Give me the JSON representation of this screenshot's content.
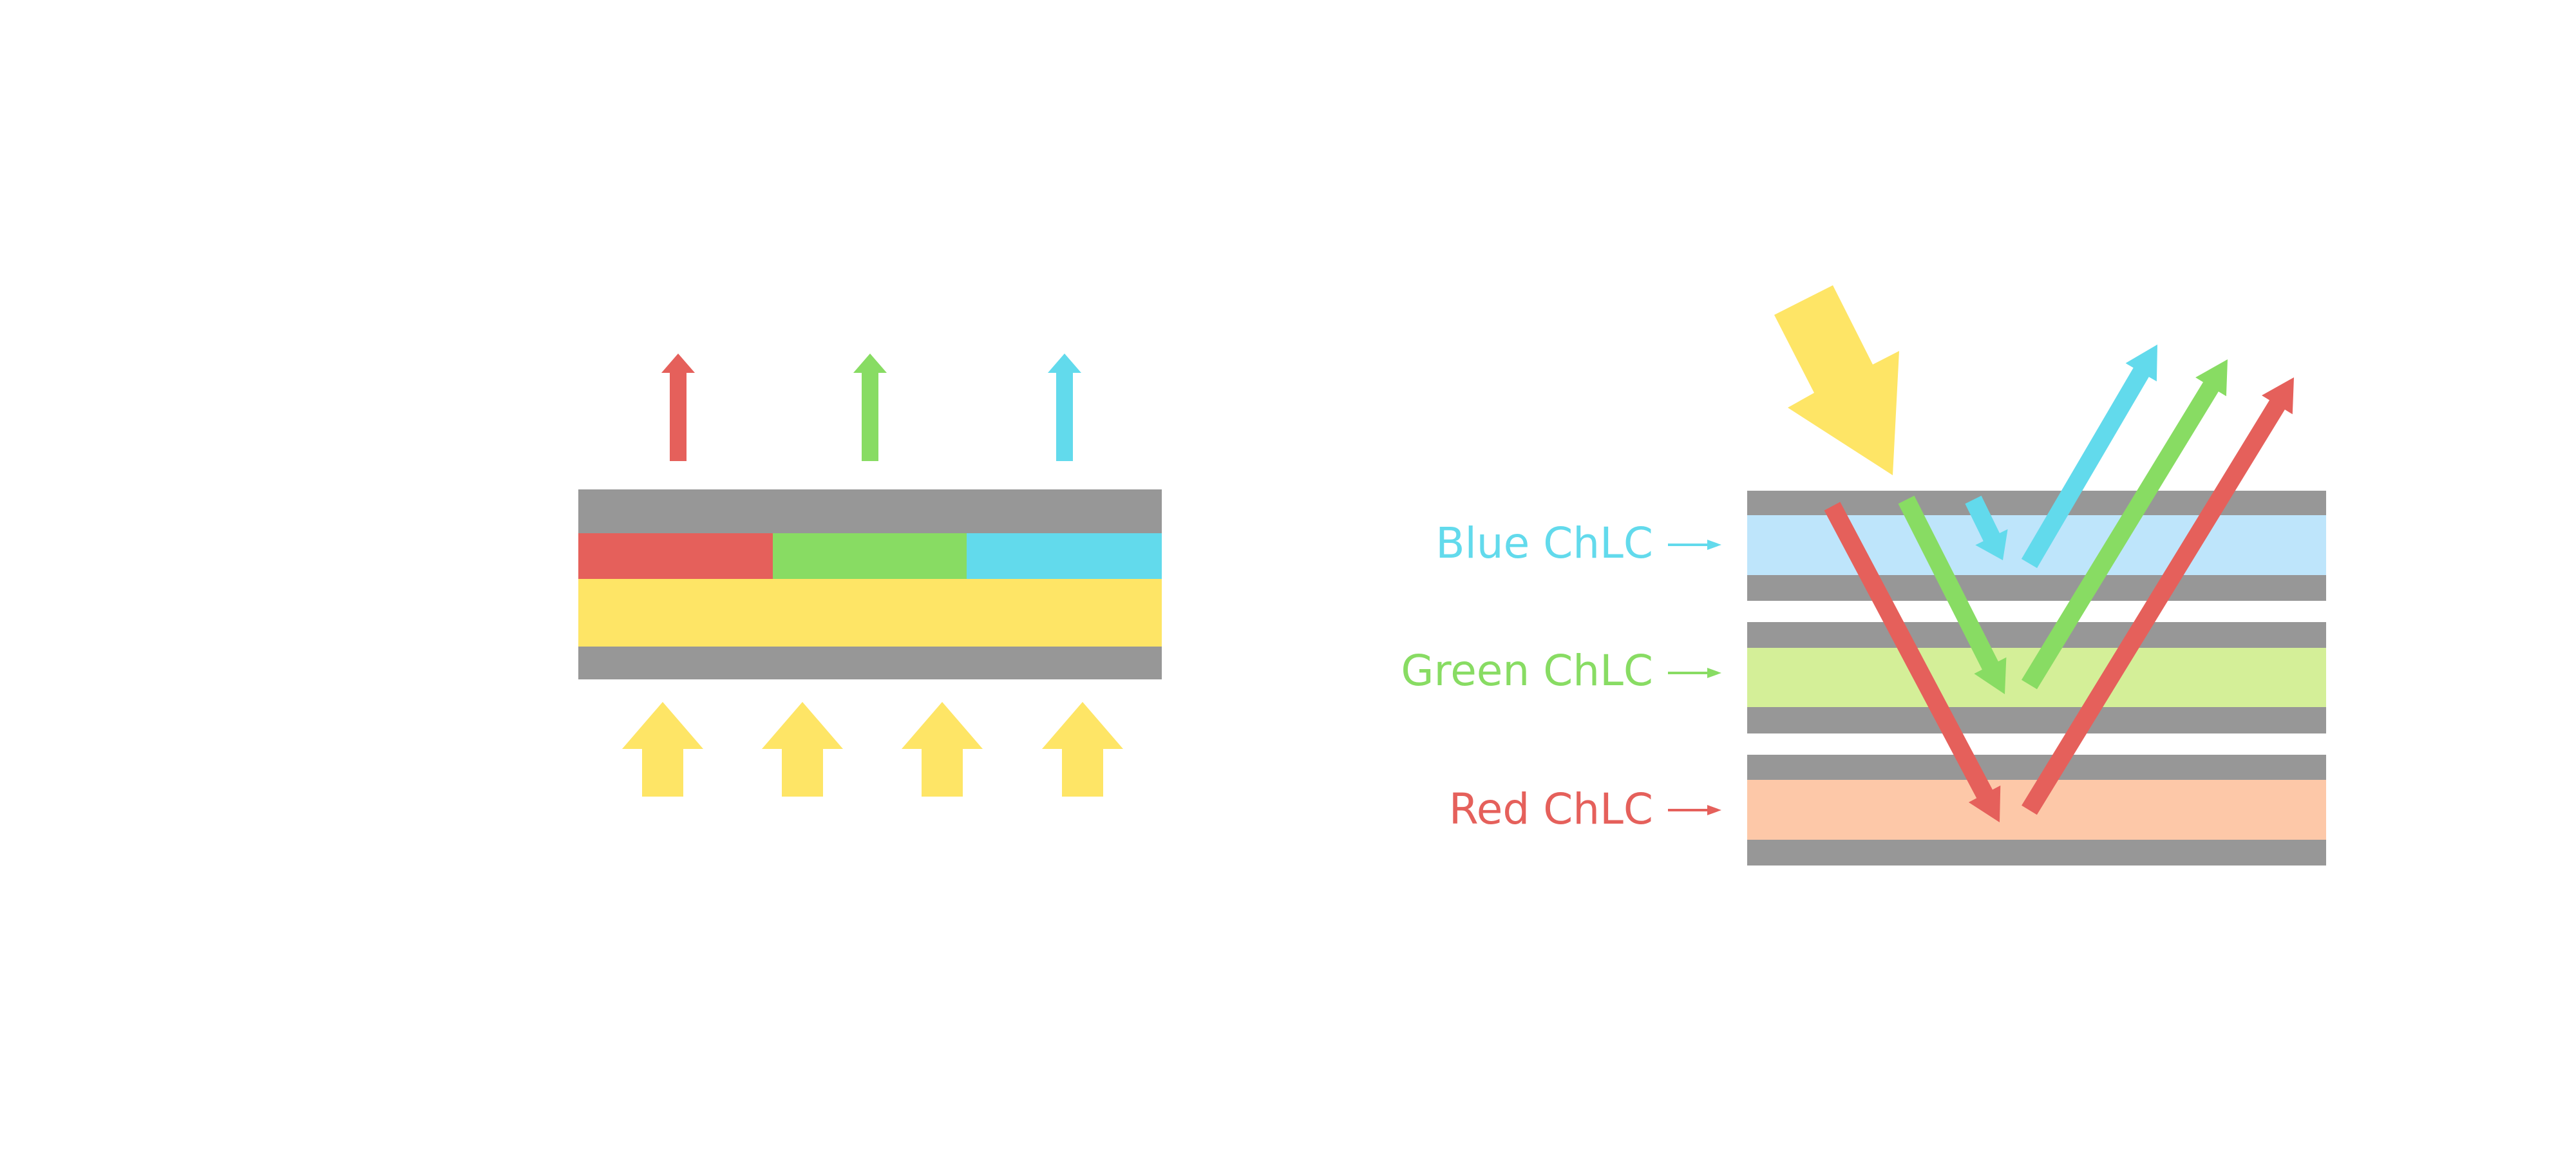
{
  "colors": {
    "red": "#E5605B",
    "green": "#88DC63",
    "blue": "#62DAEC",
    "yellow": "#FEE566",
    "gray": "#979797",
    "blue_layer": "#BEE5FB",
    "green_layer": "#D4EF98",
    "red_layer": "#FDC8A8"
  },
  "labels": {
    "blue": "Blue ChLC",
    "green": "Green ChLC",
    "red": "Red ChLC"
  }
}
